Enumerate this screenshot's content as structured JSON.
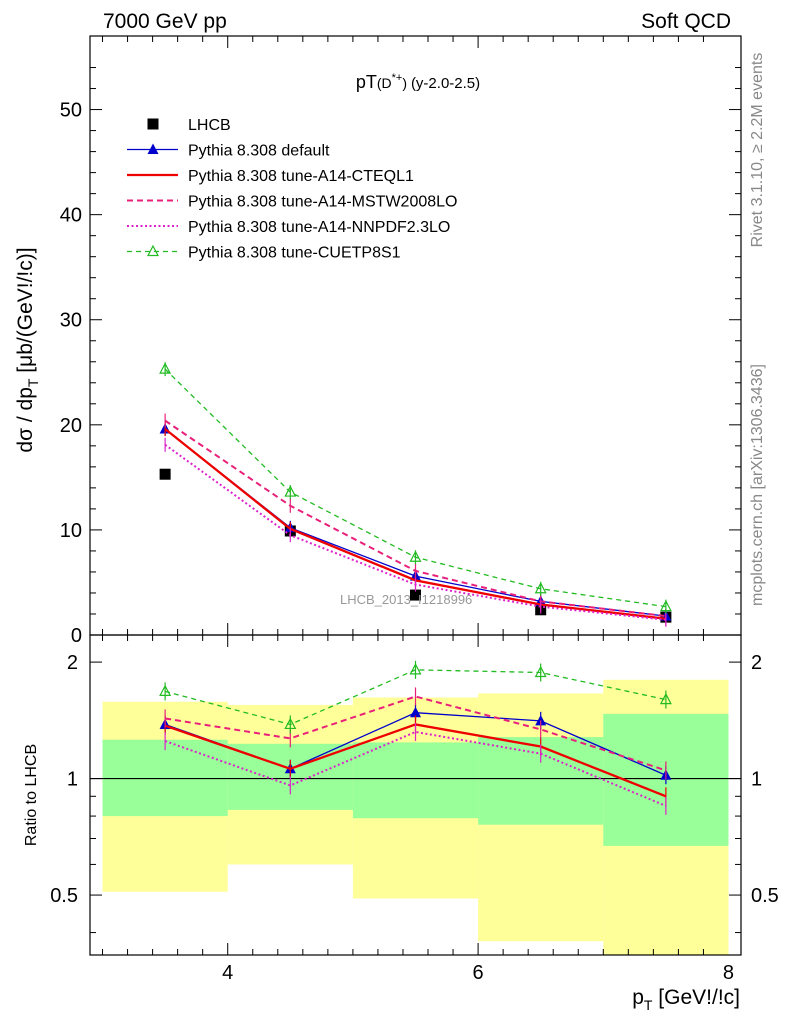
{
  "header": {
    "left": "7000 GeV pp",
    "right": "Soft QCD"
  },
  "side_text": {
    "rivet": "Rivet 3.1.10, ≥ 2.2M events",
    "mcplots": "mcplots.cern.ch [arXiv:1306.3436]"
  },
  "watermark": "LHCB_2013_I1218996",
  "chart_data": [
    {
      "type": "line",
      "title": "pT(D*+) (y-2.0-2.5)",
      "ylabel": "dσ / dp_T [μb/(GeV!/!c)]",
      "xlim": [
        2.9,
        8.1
      ],
      "ylim": [
        0,
        57
      ],
      "y_ticks": [
        0,
        10,
        20,
        30,
        40,
        50
      ],
      "x": [
        3.5,
        4.5,
        5.5,
        6.5,
        7.5
      ],
      "x_bins": [
        [
          3,
          4
        ],
        [
          4,
          5
        ],
        [
          5,
          6
        ],
        [
          6,
          7
        ],
        [
          7,
          8
        ]
      ],
      "legend_placement": "top-left",
      "series": [
        {
          "name": "LHCB",
          "values": [
            15.3,
            9.9,
            3.8,
            2.4,
            1.7
          ],
          "color": "#000000",
          "marker": "square",
          "line": "none"
        },
        {
          "name": "Pythia 8.308 default",
          "values": [
            19.6,
            10.2,
            5.6,
            3.2,
            1.8
          ],
          "color": "#0000cc",
          "marker": "triangle",
          "line": "solid"
        },
        {
          "name": "Pythia 8.308 tune-A14-CTEQL1",
          "values": [
            19.6,
            10.1,
            5.2,
            2.9,
            1.55
          ],
          "color": "#ee0000",
          "marker": "none",
          "line": "solid-thick"
        },
        {
          "name": "Pythia 8.308 tune-A14-MSTW2008LO",
          "values": [
            20.4,
            12.3,
            6.1,
            3.2,
            1.8
          ],
          "color": "#e8207a",
          "marker": "none",
          "line": "dashed"
        },
        {
          "name": "Pythia 8.308 tune-A14-NNPDF2.3LO",
          "values": [
            18.1,
            9.5,
            4.8,
            2.7,
            1.45
          ],
          "color": "#dd22cc",
          "marker": "none",
          "line": "dotted"
        },
        {
          "name": "Pythia 8.308 tune-CUETP8S1",
          "values": [
            25.3,
            13.6,
            7.4,
            4.4,
            2.7
          ],
          "color": "#22bb22",
          "marker": "open-triangle",
          "line": "dashed"
        }
      ]
    },
    {
      "type": "line",
      "ylabel": "Ratio to LHCB",
      "xlabel": "p_T [GeV!/!c]",
      "xlim": [
        2.9,
        8.1
      ],
      "ylim": [
        0.35,
        2.35
      ],
      "y_ticks": [
        0.5,
        1,
        2
      ],
      "x_ticks": [
        4,
        6,
        8
      ],
      "x": [
        3.5,
        4.5,
        5.5,
        6.5,
        7.5
      ],
      "reference_line": 1,
      "bands": {
        "inner": [
          [
            0.8,
            1.26
          ],
          [
            0.83,
            1.23
          ],
          [
            0.79,
            1.24
          ],
          [
            0.76,
            1.28
          ],
          [
            0.67,
            1.47
          ]
        ],
        "outer": [
          [
            0.51,
            1.58
          ],
          [
            0.6,
            1.55
          ],
          [
            0.49,
            1.62
          ],
          [
            0.38,
            1.66
          ],
          [
            0.35,
            1.8
          ]
        ]
      },
      "series": [
        {
          "name": "Pythia 8.308 default",
          "values": [
            1.38,
            1.06,
            1.48,
            1.41,
            1.02
          ],
          "color": "#0000cc"
        },
        {
          "name": "Pythia 8.308 tune-A14-CTEQL1",
          "values": [
            1.37,
            1.06,
            1.38,
            1.21,
            0.9
          ],
          "color": "#ee0000"
        },
        {
          "name": "Pythia 8.308 tune-A14-MSTW2008LO",
          "values": [
            1.43,
            1.27,
            1.63,
            1.34,
            1.05
          ],
          "color": "#e8207a"
        },
        {
          "name": "Pythia 8.308 tune-A14-NNPDF2.3LO",
          "values": [
            1.25,
            0.96,
            1.32,
            1.16,
            0.85
          ],
          "color": "#dd22cc"
        },
        {
          "name": "Pythia 8.308 tune-CUETP8S1",
          "values": [
            1.68,
            1.38,
            1.91,
            1.88,
            1.6
          ],
          "color": "#22bb22"
        }
      ]
    }
  ]
}
